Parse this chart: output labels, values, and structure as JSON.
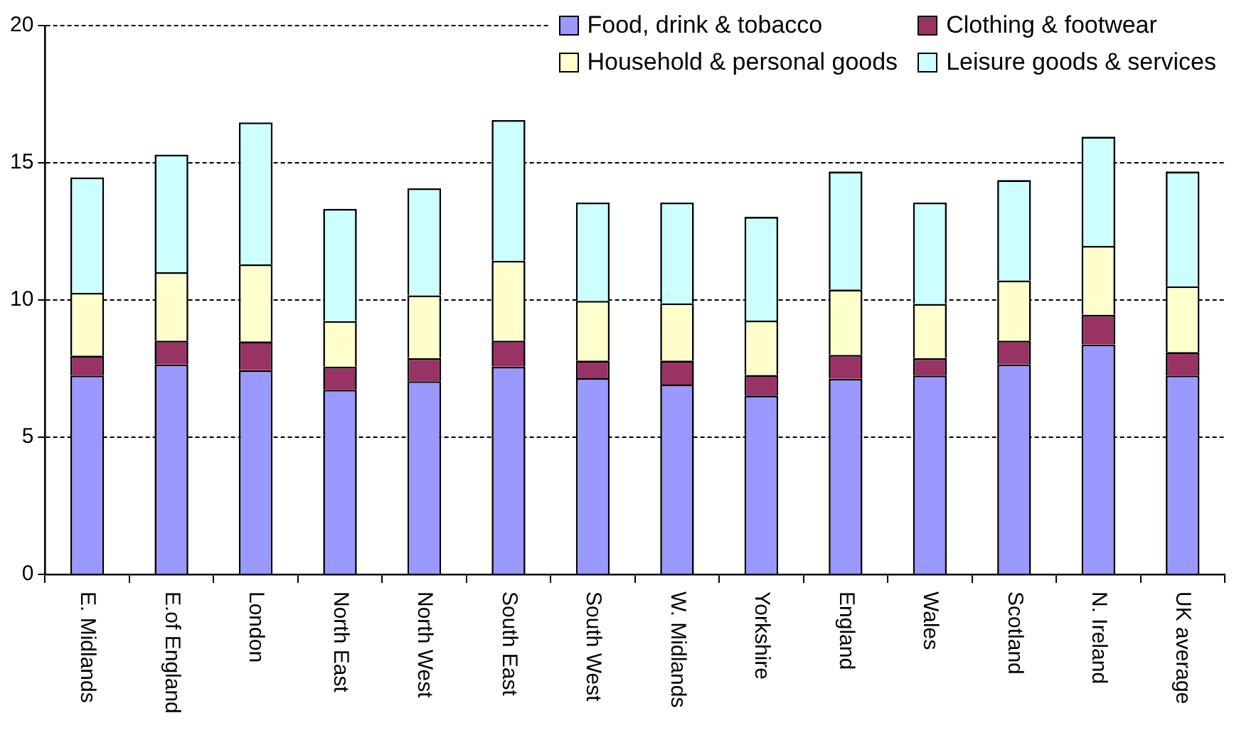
{
  "chart_data": {
    "type": "bar",
    "stacked": true,
    "categories": [
      "E. Midlands",
      "E.of England",
      "London",
      "North East",
      "North West",
      "South East",
      "South West",
      "W. Midlands",
      "Yorkshire",
      "England",
      "Wales",
      "Scotland",
      "N. Ireland",
      "UK average"
    ],
    "series": [
      {
        "name": "Food, drink & tobacco",
        "color": "#9999ff",
        "values": [
          7.25,
          7.65,
          7.44,
          6.73,
          7.04,
          7.57,
          7.15,
          6.92,
          6.52,
          7.13,
          7.25,
          7.65,
          8.38,
          7.25
        ]
      },
      {
        "name": "Clothing & footwear",
        "color": "#993366",
        "values": [
          0.72,
          0.87,
          1.05,
          0.84,
          0.84,
          0.95,
          0.64,
          0.87,
          0.75,
          0.87,
          0.63,
          0.87,
          1.08,
          0.85
        ]
      },
      {
        "name": "Household & personal goods",
        "color": "#ffffcc",
        "values": [
          2.29,
          2.49,
          2.81,
          1.66,
          2.29,
          2.91,
          2.18,
          2.09,
          1.98,
          2.38,
          1.98,
          2.19,
          2.51,
          2.4
        ]
      },
      {
        "name": "Leisure goods & services",
        "color": "#ccffff",
        "values": [
          4.21,
          4.29,
          5.17,
          4.09,
          3.9,
          5.13,
          3.58,
          3.67,
          3.78,
          4.3,
          3.69,
          3.66,
          3.98,
          4.18
        ]
      }
    ],
    "ylim": [
      0,
      20
    ],
    "yticks": [
      0,
      5,
      10,
      15,
      20
    ],
    "grid": "y",
    "legend": "top right"
  }
}
